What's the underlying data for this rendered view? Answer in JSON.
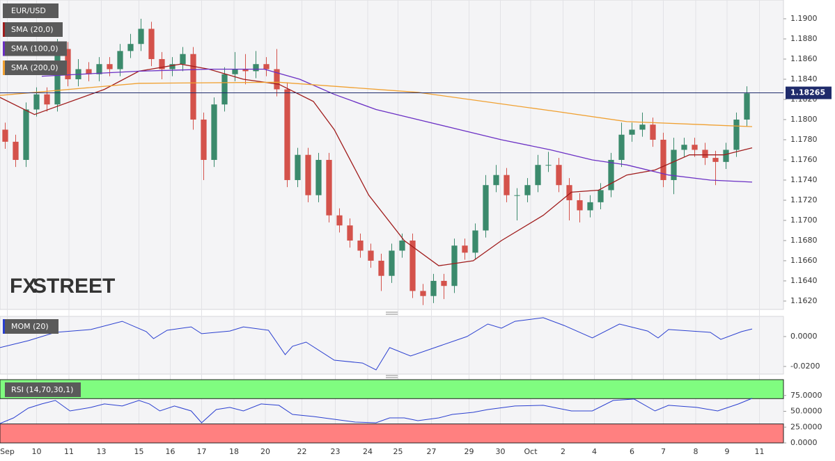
{
  "chart_data": [
    {
      "type": "candlestick",
      "title": "EUR/USD",
      "watermark": {
        "fx": "FX",
        "street": "STREET"
      },
      "open": [
        1.179,
        1.1778,
        1.176,
        1.181,
        1.1825,
        1.1815,
        1.187,
        1.184,
        1.185,
        1.1845,
        1.1855,
        1.185,
        1.1868,
        1.1875,
        1.189,
        1.186,
        1.185,
        1.1855,
        1.1865,
        1.18,
        1.176,
        1.1815,
        1.1845,
        1.185,
        1.1848,
        1.1855,
        1.185,
        1.183,
        1.174,
        1.1765,
        1.1725,
        1.176,
        1.1705,
        1.1695,
        1.168,
        1.167,
        1.166,
        1.1645,
        1.167,
        1.168,
        1.163,
        1.1625,
        1.164,
        1.1635,
        1.1675,
        1.1668,
        1.169,
        1.1735,
        1.1745,
        1.1725,
        1.1725,
        1.1735,
        1.1755,
        1.1755,
        1.1735,
        1.172,
        1.171,
        1.1718,
        1.173,
        1.176,
        1.1785,
        1.179,
        1.1795,
        1.178,
        1.174,
        1.177,
        1.1775,
        1.177,
        1.1762,
        1.1758,
        1.177,
        1.18
      ],
      "high": [
        1.1797,
        1.1785,
        1.1817,
        1.1832,
        1.1832,
        1.188,
        1.1877,
        1.186,
        1.1857,
        1.1862,
        1.1862,
        1.1875,
        1.1885,
        1.19,
        1.1897,
        1.1867,
        1.1862,
        1.1872,
        1.1872,
        1.1807,
        1.1822,
        1.1852,
        1.1867,
        1.1865,
        1.1868,
        1.1862,
        1.187,
        1.1837,
        1.1772,
        1.1772,
        1.1767,
        1.1767,
        1.1712,
        1.1702,
        1.1687,
        1.1677,
        1.1667,
        1.1677,
        1.1687,
        1.1687,
        1.1637,
        1.1647,
        1.1647,
        1.1682,
        1.1682,
        1.1697,
        1.1745,
        1.1755,
        1.1752,
        1.1732,
        1.1742,
        1.1765,
        1.1768,
        1.1762,
        1.1742,
        1.1727,
        1.1725,
        1.1737,
        1.1767,
        1.1797,
        1.1797,
        1.1807,
        1.1802,
        1.1787,
        1.1782,
        1.1782,
        1.1782,
        1.1777,
        1.1769,
        1.1777,
        1.1807,
        1.1833
      ],
      "low": [
        1.1771,
        1.1753,
        1.1753,
        1.1803,
        1.1808,
        1.1808,
        1.1833,
        1.1833,
        1.1838,
        1.1838,
        1.1843,
        1.1843,
        1.1861,
        1.1868,
        1.1853,
        1.184,
        1.1843,
        1.1848,
        1.179,
        1.174,
        1.1753,
        1.1808,
        1.1838,
        1.1835,
        1.1841,
        1.1843,
        1.1823,
        1.1733,
        1.1733,
        1.1718,
        1.1718,
        1.1698,
        1.1688,
        1.1673,
        1.1663,
        1.1653,
        1.163,
        1.1638,
        1.1663,
        1.1623,
        1.1616,
        1.1618,
        1.1622,
        1.1628,
        1.1661,
        1.1661,
        1.1683,
        1.1728,
        1.1718,
        1.17,
        1.1718,
        1.1728,
        1.1748,
        1.1728,
        1.17,
        1.1698,
        1.1703,
        1.1711,
        1.1723,
        1.1753,
        1.1778,
        1.1783,
        1.1773,
        1.1733,
        1.1726,
        1.1763,
        1.1763,
        1.1755,
        1.1735,
        1.1751,
        1.1763,
        1.1793
      ],
      "close": [
        1.1778,
        1.176,
        1.181,
        1.1825,
        1.1815,
        1.187,
        1.184,
        1.185,
        1.1845,
        1.1855,
        1.185,
        1.1868,
        1.1875,
        1.189,
        1.186,
        1.185,
        1.1855,
        1.1865,
        1.18,
        1.176,
        1.1815,
        1.1845,
        1.185,
        1.1848,
        1.1855,
        1.185,
        1.183,
        1.174,
        1.1765,
        1.1725,
        1.176,
        1.1705,
        1.1695,
        1.168,
        1.167,
        1.166,
        1.1645,
        1.167,
        1.168,
        1.163,
        1.1625,
        1.164,
        1.1635,
        1.1675,
        1.1668,
        1.169,
        1.1735,
        1.1745,
        1.1725,
        1.1725,
        1.1735,
        1.1755,
        1.1755,
        1.1735,
        1.172,
        1.171,
        1.1718,
        1.173,
        1.176,
        1.1785,
        1.179,
        1.1795,
        1.178,
        1.174,
        1.177,
        1.1775,
        1.177,
        1.1762,
        1.1758,
        1.177,
        1.18,
        1.1826
      ],
      "up_color": "#3b8a6c",
      "down_color": "#d4524b",
      "overlays": [
        {
          "name": "SMA (20,0)",
          "color": "#a01c1c",
          "x": [
            -0.5,
            2.8,
            9.5,
            12.8,
            16.8,
            19.5,
            22.8,
            26.2,
            29.5,
            31.5,
            34.8,
            38.2,
            41.5,
            44.8,
            47.5,
            51.5,
            54.2,
            56.8,
            59.5,
            62.2,
            65.5,
            68.8,
            71.5
          ],
          "values": [
            1.1822,
            1.1805,
            1.183,
            1.1848,
            1.1855,
            1.185,
            1.184,
            1.1835,
            1.1818,
            1.179,
            1.1725,
            1.168,
            1.1655,
            1.166,
            1.168,
            1.1705,
            1.1728,
            1.173,
            1.1745,
            1.175,
            1.1765,
            1.1765,
            1.1772
          ]
        },
        {
          "name": "SMA (100,0)",
          "color": "#6a2fc4",
          "x": [
            3.5,
            12.8,
            19.5,
            24.8,
            28.2,
            31.5,
            35.5,
            39.5,
            43.5,
            47.5,
            52.2,
            56.2,
            59.5,
            63.5,
            67.5,
            71.5
          ],
          "values": [
            1.1843,
            1.1848,
            1.185,
            1.185,
            1.184,
            1.1825,
            1.181,
            1.18,
            1.179,
            1.178,
            1.177,
            1.176,
            1.1755,
            1.1745,
            1.174,
            1.1738
          ]
        },
        {
          "name": "SMA (200,0)",
          "color": "#f0a030",
          "x": [
            -0.5,
            12.8,
            26.2,
            39.5,
            52.8,
            59.5,
            71.5
          ],
          "values": [
            1.1824,
            1.1836,
            1.1837,
            1.1827,
            1.1808,
            1.1798,
            1.1793
          ]
        }
      ],
      "last_price": 1.18265,
      "last_price_color": "#1f2b6b",
      "xlim": [
        -0.5,
        74.5
      ],
      "xticks": [
        {
          "value": 0.2,
          "label": "Sep"
        },
        {
          "value": 3.0,
          "label": "10"
        },
        {
          "value": 6.1,
          "label": "11"
        },
        {
          "value": 9.2,
          "label": "13"
        },
        {
          "value": 12.8,
          "label": "15"
        },
        {
          "value": 15.8,
          "label": "16"
        },
        {
          "value": 18.8,
          "label": "17"
        },
        {
          "value": 21.9,
          "label": "18"
        },
        {
          "value": 24.9,
          "label": "20"
        },
        {
          "value": 28.4,
          "label": "22"
        },
        {
          "value": 31.6,
          "label": "23"
        },
        {
          "value": 34.7,
          "label": "24"
        },
        {
          "value": 37.6,
          "label": "25"
        },
        {
          "value": 40.8,
          "label": "27"
        },
        {
          "value": 44.4,
          "label": "29"
        },
        {
          "value": 47.4,
          "label": "30"
        },
        {
          "value": 50.3,
          "label": "Oct"
        },
        {
          "value": 53.4,
          "label": "2"
        },
        {
          "value": 56.4,
          "label": "4"
        },
        {
          "value": 60.0,
          "label": "6"
        },
        {
          "value": 63.0,
          "label": "7"
        },
        {
          "value": 66.1,
          "label": "8"
        },
        {
          "value": 69.1,
          "label": "9"
        },
        {
          "value": 72.2,
          "label": "11"
        }
      ],
      "ylim": [
        1.16117,
        1.19186
      ],
      "yticks": [
        {
          "value": 1.19,
          "label": "1.1900"
        },
        {
          "value": 1.188,
          "label": "1.1880"
        },
        {
          "value": 1.186,
          "label": "1.1860"
        },
        {
          "value": 1.184,
          "label": "1.1840"
        },
        {
          "value": 1.182,
          "label": "1.1820"
        },
        {
          "value": 1.18,
          "label": "1.1800"
        },
        {
          "value": 1.178,
          "label": "1.1780"
        },
        {
          "value": 1.176,
          "label": "1.1760"
        },
        {
          "value": 1.174,
          "label": "1.1740"
        },
        {
          "value": 1.172,
          "label": "1.1720"
        },
        {
          "value": 1.17,
          "label": "1.1700"
        },
        {
          "value": 1.168,
          "label": "1.1680"
        },
        {
          "value": 1.166,
          "label": "1.1660"
        },
        {
          "value": 1.164,
          "label": "1.1640"
        },
        {
          "value": 1.162,
          "label": "1.1620"
        }
      ]
    },
    {
      "type": "line",
      "title": "MOM (20)",
      "color": "#2a3fd0",
      "x": [
        -0.5,
        2.2,
        4.8,
        8.2,
        11.2,
        13.5,
        14.2,
        15.5,
        17.8,
        18.8,
        21.5,
        22.8,
        25.2,
        26.8,
        27.5,
        28.8,
        31.5,
        34.2,
        35.5,
        36.8,
        38.8,
        41.5,
        44.2,
        46.2,
        47.5,
        48.8,
        51.5,
        53.5,
        56.2,
        58.8,
        61.5,
        62.5,
        63.5,
        67.5,
        68.5,
        70.5,
        71.5
      ],
      "values": [
        -0.0074,
        -0.0028,
        0.0028,
        0.0047,
        0.0102,
        0.0033,
        -0.0014,
        0.0042,
        0.0065,
        0.0019,
        0.0037,
        0.0065,
        0.0042,
        -0.0121,
        -0.0065,
        -0.0037,
        -0.0158,
        -0.0177,
        -0.0223,
        -0.0074,
        -0.013,
        -0.0065,
        0.0,
        0.0084,
        0.0056,
        0.0102,
        0.0126,
        0.0074,
        -0.0009,
        0.0084,
        0.0037,
        -0.0009,
        0.0047,
        0.0028,
        -0.0019,
        0.0033,
        0.0051
      ],
      "ylim": [
        -0.0251,
        0.0135
      ],
      "yticks": [
        {
          "value": 0,
          "label": "0.0000"
        },
        {
          "value": -0.02,
          "label": "-0.0200"
        }
      ]
    },
    {
      "type": "line",
      "title": "RSI (14,70,30,1)",
      "color": "#2a3fd0",
      "overbought": 70,
      "oversold": 30,
      "overbought_color": "#80fc80",
      "oversold_color": "#ff8080",
      "x": [
        -0.5,
        0.8,
        2.2,
        3.5,
        4.8,
        6.2,
        8.2,
        9.5,
        11.2,
        12.8,
        13.8,
        14.8,
        16.2,
        17.8,
        18.8,
        20.2,
        21.5,
        22.8,
        24.5,
        26.2,
        27.5,
        29.5,
        31.5,
        33.5,
        35.5,
        36.8,
        38.2,
        39.5,
        41.5,
        42.8,
        44.8,
        46.2,
        48.8,
        51.5,
        54.2,
        56.2,
        58.2,
        60.2,
        62.2,
        63.5,
        66.2,
        68.2,
        70.2,
        71.5
      ],
      "values": [
        30.8,
        39.6,
        55,
        61.6,
        67.1,
        50.6,
        56.1,
        61.6,
        58.3,
        67.1,
        61.6,
        50.6,
        58.3,
        50.6,
        31.9,
        52.8,
        56.1,
        50.6,
        61.6,
        59.4,
        45.1,
        41.8,
        37.4,
        33,
        31.9,
        39.6,
        39.6,
        35.2,
        39.6,
        45.1,
        48.4,
        52.8,
        58.3,
        59.4,
        50.6,
        50.6,
        67.1,
        69.3,
        50.6,
        59.4,
        56.1,
        50.6,
        61.6,
        70.4
      ],
      "ylim": [
        0,
        100
      ],
      "yticks": [
        {
          "value": 75,
          "label": "75.0000"
        },
        {
          "value": 50,
          "label": "50.0000"
        },
        {
          "value": 25,
          "label": "25.0000"
        },
        {
          "value": 0,
          "label": "0.0000"
        }
      ]
    }
  ]
}
